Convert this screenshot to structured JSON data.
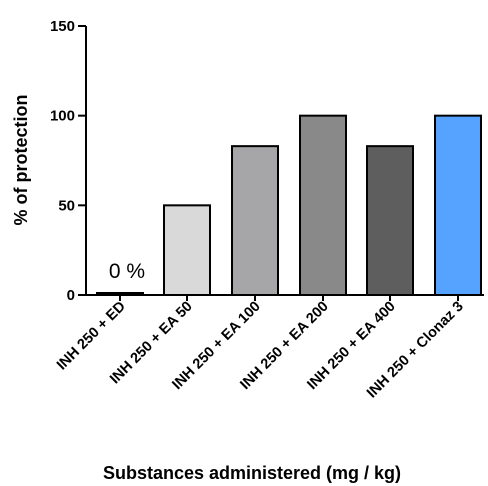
{
  "chart_data": {
    "type": "bar",
    "categories": [
      "INH 250 + ED",
      "INH 250 + EA 50",
      "INH 250 + EA 100",
      "INH 250 + EA 200",
      "INH 250 + EA 400",
      "INH 250 + Clonaz 3"
    ],
    "values": [
      0,
      50,
      83,
      100,
      83,
      100
    ],
    "colors": [
      "#000000",
      "#d9d9d9",
      "#a6a6a8",
      "#898989",
      "#5e5e5e",
      "#56a2ff"
    ],
    "ylabel": "% of protection",
    "xlabel": "Substances administered (mg / kg)",
    "ylim": [
      0,
      150
    ],
    "yticks": [
      0,
      50,
      100,
      150
    ],
    "annotations": [
      {
        "category": "INH 250 + ED",
        "text": "0 %"
      }
    ],
    "grid": false,
    "legend": "none"
  }
}
